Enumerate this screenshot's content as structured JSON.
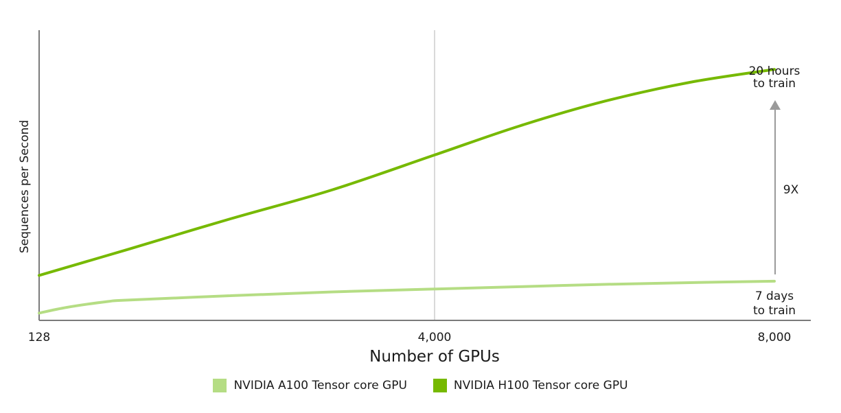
{
  "colors": {
    "a100": "#b5dd84",
    "h100": "#76b900",
    "axis": "#7a7a7a",
    "gridline": "#d9d9d9",
    "arrow": "#9a9a9a"
  },
  "chart_data": {
    "type": "line",
    "title": "",
    "xlabel": "Number of GPUs",
    "ylabel": "Sequences per Second",
    "x_ticks": [
      "128",
      "4,000",
      "8,000"
    ],
    "x_tick_values": [
      128,
      4000,
      8000
    ],
    "xlim": [
      128,
      8200
    ],
    "ylim": [
      0,
      100
    ],
    "y_ticks_shown": false,
    "grid": "vertical line at x=4000 only",
    "series": [
      {
        "name": "NVIDIA A100 Tensor core GPU",
        "x": [
          128,
          400,
          800,
          1000,
          2000,
          3000,
          4000,
          5000,
          6000,
          7000,
          8000
        ],
        "y": [
          2.5,
          4.5,
          6.5,
          7,
          8.5,
          9.8,
          10.8,
          11.6,
          12.4,
          13,
          13.5
        ]
      },
      {
        "name": "NVIDIA H100 Tensor core GPU",
        "x": [
          128,
          1000,
          2000,
          3000,
          4000,
          5000,
          6000,
          7000,
          8000
        ],
        "y": [
          15.5,
          24.5,
          35,
          45,
          57,
          67,
          75.5,
          82,
          86.5
        ]
      }
    ],
    "annotations": {
      "top_label": [
        "20 hours",
        "to train"
      ],
      "bottom_label": [
        "7 days",
        "to train"
      ],
      "ratio_label": "9X"
    },
    "legend_position": "bottom-center"
  }
}
